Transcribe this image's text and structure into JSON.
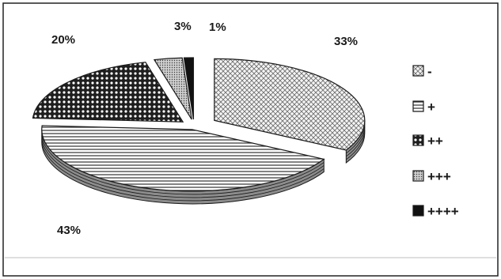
{
  "chart_data": {
    "type": "pie",
    "style": "3d-exploded",
    "slices": [
      {
        "label": "-",
        "value": 33,
        "display": "33%",
        "pattern": "diamond-hatch"
      },
      {
        "label": "+",
        "value": 43,
        "display": "43%",
        "pattern": "horizontal-lines"
      },
      {
        "label": "++",
        "value": 20,
        "display": "20%",
        "pattern": "dots-grid"
      },
      {
        "label": "+++",
        "value": 3,
        "display": "3%",
        "pattern": "fine-dots"
      },
      {
        "label": "++++",
        "value": 1,
        "display": "1%",
        "pattern": "solid-black"
      }
    ],
    "legend_position": "right",
    "colors": {
      "ink": "#1a1a1a",
      "side": "#9a9a9a",
      "background": "#ffffff"
    }
  }
}
